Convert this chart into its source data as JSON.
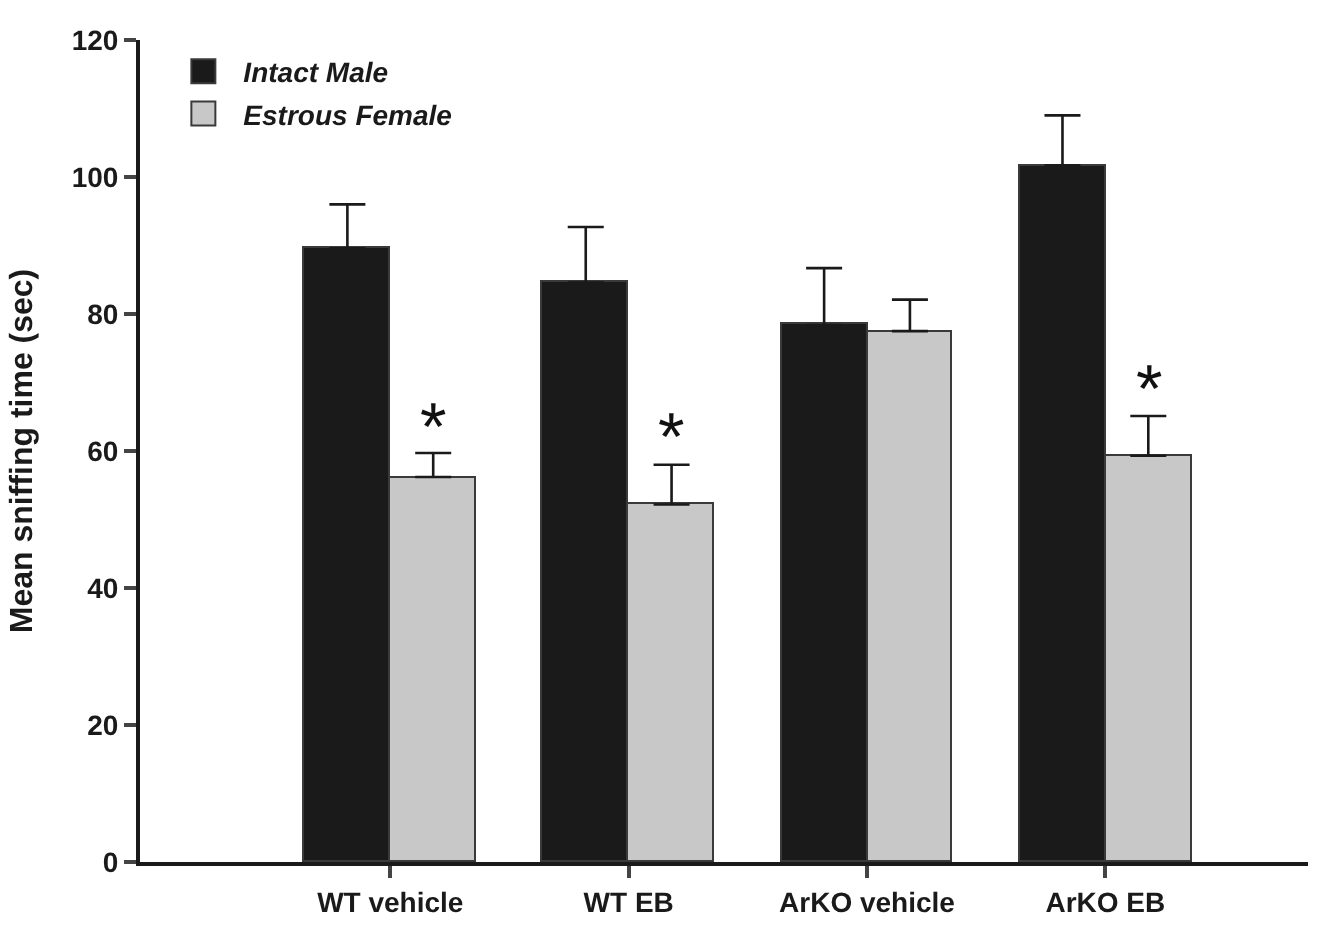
{
  "chart_data": {
    "type": "bar",
    "ylabel": "Mean sniffing time (sec)",
    "categories": [
      "WT vehicle",
      "WT EB",
      "ArKO vehicle",
      "ArKO EB"
    ],
    "series": [
      {
        "name": "Intact Male",
        "color": "#1a1a1a",
        "values": [
          89.6,
          84.6,
          78.4,
          101.7
        ],
        "errors": [
          [
            89.6,
            96.0
          ],
          [
            84.6,
            92.7
          ],
          [
            78.4,
            86.7
          ],
          [
            101.7,
            109.0
          ]
        ]
      },
      {
        "name": "Estrous Female",
        "color": "#c8c8c8",
        "values": [
          56.2,
          52.2,
          77.5,
          59.3
        ],
        "errors": [
          [
            56.2,
            59.7
          ],
          [
            52.2,
            58.0
          ],
          [
            77.5,
            82.1
          ],
          [
            59.3,
            65.1
          ]
        ]
      }
    ],
    "annotations": [
      {
        "text": "*",
        "x": "WT vehicle",
        "y": 59.7
      },
      {
        "text": "*",
        "x": "WT EB",
        "y": 58.0
      },
      {
        "text": "*",
        "x": "ArKO EB",
        "y": 65.1
      }
    ],
    "ylim": [
      0,
      120
    ],
    "yticks": [
      0,
      20,
      40,
      60,
      80,
      100,
      120
    ],
    "legend": "top left"
  }
}
